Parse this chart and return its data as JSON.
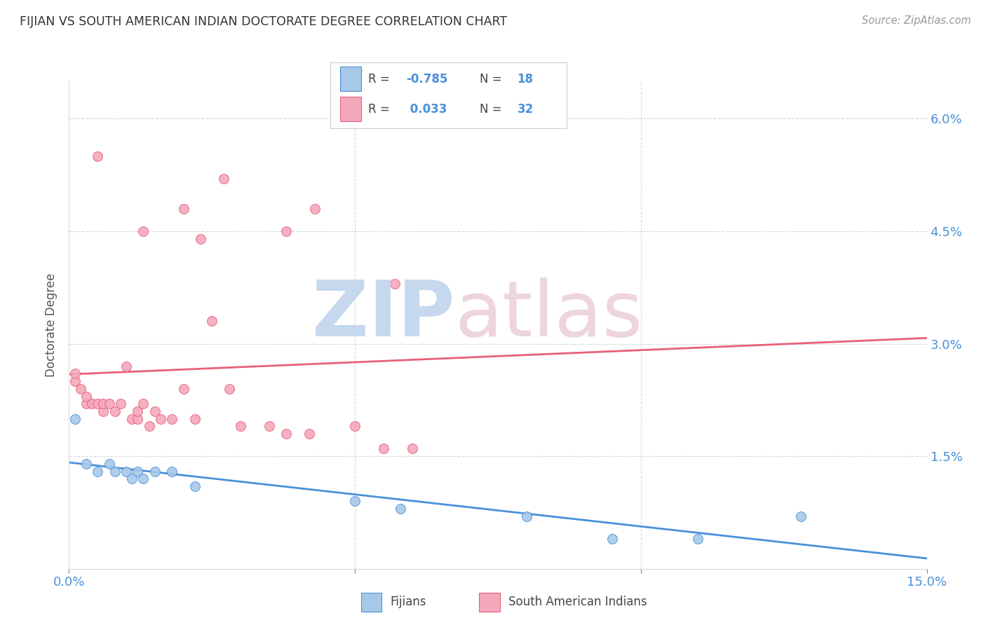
{
  "title": "FIJIAN VS SOUTH AMERICAN INDIAN DOCTORATE DEGREE CORRELATION CHART",
  "source": "Source: ZipAtlas.com",
  "ylabel": "Doctorate Degree",
  "xlim": [
    0.0,
    0.15
  ],
  "ylim": [
    0.0,
    0.065
  ],
  "yticks": [
    0.0,
    0.015,
    0.03,
    0.045,
    0.06
  ],
  "yticklabels": [
    "",
    "1.5%",
    "3.0%",
    "4.5%",
    "6.0%"
  ],
  "xticks": [
    0.0,
    0.05,
    0.1,
    0.15
  ],
  "xticklabels": [
    "0.0%",
    "",
    "",
    "15.0%"
  ],
  "fijian_color": "#a8c8e8",
  "sai_color": "#f4a8bc",
  "fijian_line_color": "#4a90d9",
  "sai_line_color": "#e8607a",
  "fijian_R": -0.785,
  "fijian_N": 18,
  "sai_R": 0.033,
  "sai_N": 32,
  "fijian_x": [
    0.001,
    0.003,
    0.005,
    0.007,
    0.008,
    0.01,
    0.011,
    0.012,
    0.013,
    0.015,
    0.018,
    0.022,
    0.05,
    0.058,
    0.08,
    0.095,
    0.11,
    0.128
  ],
  "fijian_y": [
    0.02,
    0.014,
    0.013,
    0.014,
    0.013,
    0.013,
    0.012,
    0.013,
    0.012,
    0.013,
    0.013,
    0.011,
    0.009,
    0.008,
    0.007,
    0.004,
    0.004,
    0.007
  ],
  "sai_x": [
    0.001,
    0.001,
    0.002,
    0.003,
    0.003,
    0.004,
    0.005,
    0.006,
    0.006,
    0.007,
    0.008,
    0.009,
    0.01,
    0.011,
    0.012,
    0.012,
    0.013,
    0.014,
    0.015,
    0.016,
    0.018,
    0.02,
    0.022,
    0.025,
    0.028,
    0.03,
    0.035,
    0.038,
    0.042,
    0.05,
    0.055,
    0.06
  ],
  "sai_y": [
    0.025,
    0.026,
    0.024,
    0.022,
    0.023,
    0.022,
    0.022,
    0.021,
    0.022,
    0.022,
    0.021,
    0.022,
    0.027,
    0.02,
    0.02,
    0.021,
    0.022,
    0.019,
    0.021,
    0.02,
    0.02,
    0.024,
    0.02,
    0.033,
    0.024,
    0.019,
    0.019,
    0.018,
    0.018,
    0.019,
    0.016,
    0.016
  ],
  "sai_high_x": [
    0.005,
    0.013,
    0.02,
    0.023,
    0.027,
    0.038,
    0.043,
    0.057
  ],
  "sai_high_y": [
    0.055,
    0.045,
    0.048,
    0.044,
    0.052,
    0.045,
    0.048,
    0.038
  ],
  "background_color": "#ffffff",
  "grid_color": "#d8d8d8",
  "axis_color": "#4a90d9",
  "legend_border_color": "#cccccc",
  "watermark_zip_color": "#c5d8ee",
  "watermark_atlas_color": "#eed5dd"
}
